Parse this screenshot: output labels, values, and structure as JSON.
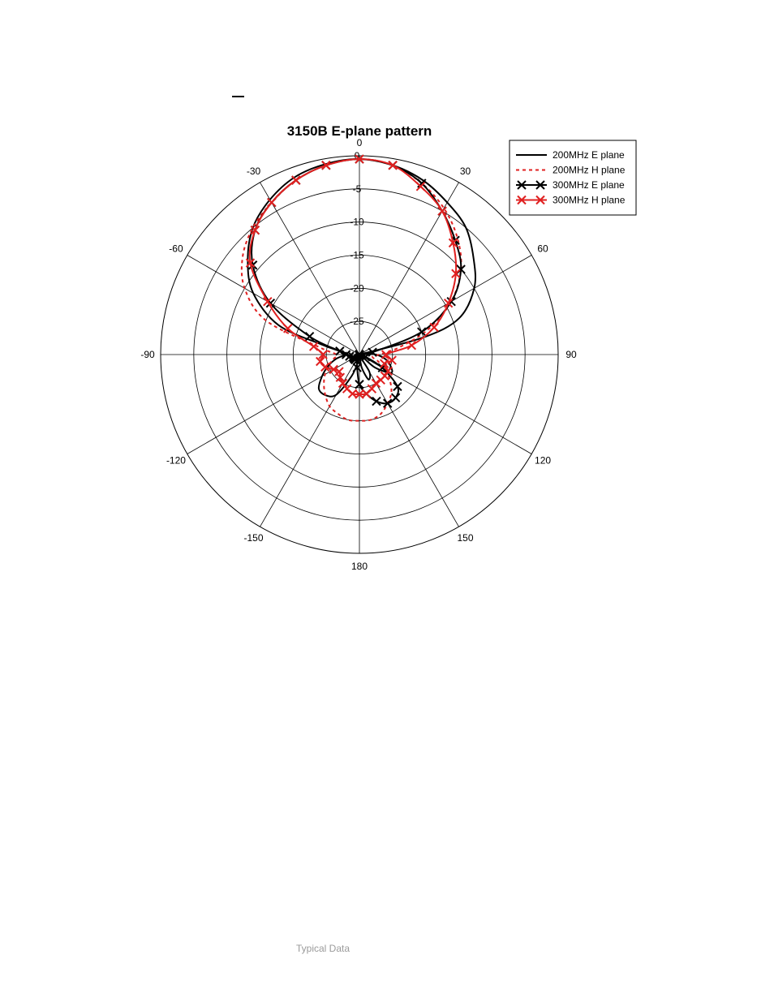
{
  "chart_data": {
    "type": "polar-line",
    "title": "3150B E-plane pattern",
    "angle_unit": "degrees",
    "radial_unit": "dB",
    "rlim": [
      -30,
      0
    ],
    "radial_ticks": [
      0,
      -5,
      -10,
      -15,
      -20,
      -25
    ],
    "radial_tick_labels": [
      "0",
      "-5",
      "-10",
      "-15",
      "-20",
      "-25"
    ],
    "angle_ticks": [
      0,
      30,
      60,
      90,
      120,
      150,
      180,
      -150,
      -120,
      -90,
      -60,
      -30
    ],
    "angle_tick_labels": [
      "0",
      "30",
      "60",
      "90",
      "120",
      "150",
      "180",
      "-150",
      "-120",
      "-90",
      "-60",
      "-30"
    ],
    "grid": true,
    "legend_position": "top-right",
    "series": [
      {
        "name": "200MHz E plane",
        "color": "#000000",
        "style": "solid",
        "marker": "none",
        "angles": [
          0,
          10,
          20,
          30,
          40,
          50,
          60,
          70,
          75,
          80,
          85,
          90,
          100,
          110,
          120,
          130,
          140,
          150,
          160,
          170,
          180,
          -170,
          -160,
          -150,
          -140,
          -130,
          -120,
          -110,
          -100,
          -90,
          -85,
          -80,
          -75,
          -70,
          -60,
          -50,
          -40,
          -30,
          -20,
          -10
        ],
        "values": [
          -0.5,
          -1,
          -2,
          -3.5,
          -5,
          -7.5,
          -10,
          -14,
          -20,
          -30,
          -29,
          -27.5,
          -26,
          -25,
          -24.5,
          -27,
          -30,
          -27,
          -26,
          -28,
          -30,
          -29,
          -26.5,
          -23,
          -22,
          -22,
          -23.5,
          -25,
          -26.5,
          -28,
          -28,
          -27,
          -24,
          -17,
          -11.5,
          -8,
          -5,
          -3,
          -1.5,
          -0.8
        ]
      },
      {
        "name": "200MHz H plane",
        "color": "#e02020",
        "style": "dashed",
        "marker": "none",
        "angles": [
          0,
          10,
          20,
          30,
          40,
          50,
          60,
          70,
          80,
          90,
          100,
          110,
          120,
          130,
          140,
          150,
          160,
          170,
          180,
          -170,
          -160,
          -150,
          -140,
          -130,
          -120,
          -110,
          -100,
          -90,
          -80,
          -70,
          -60,
          -50,
          -40,
          -30,
          -20,
          -10
        ],
        "values": [
          -0.5,
          -1,
          -2.5,
          -4.5,
          -7,
          -10,
          -14,
          -19,
          -24,
          -27,
          -28,
          -27,
          -25.5,
          -24,
          -22.5,
          -21.5,
          -20.5,
          -20,
          -20,
          -20,
          -20.5,
          -21,
          -22,
          -23,
          -24,
          -25,
          -26,
          -26.5,
          -24,
          -15,
          -10,
          -7,
          -5,
          -3.5,
          -2,
          -1
        ]
      },
      {
        "name": "300MHz E plane",
        "color": "#000000",
        "style": "solid",
        "marker": "x",
        "angles": [
          0,
          10,
          20,
          30,
          40,
          50,
          60,
          70,
          80,
          90,
          100,
          110,
          120,
          130,
          140,
          150,
          160,
          170,
          180,
          -170,
          -160,
          -150,
          -140,
          -130,
          -120,
          -110,
          -100,
          -90,
          -80,
          -70,
          -60,
          -50,
          -40,
          -30,
          -20,
          -10
        ],
        "values": [
          -0.5,
          -1,
          -2.5,
          -5,
          -7.5,
          -10,
          -14,
          -20,
          -28,
          -30,
          -30,
          -29,
          -26,
          -22.5,
          -21.5,
          -21.5,
          -22.5,
          -24,
          -25.5,
          -28,
          -29,
          -30,
          -29,
          -29,
          -29,
          -29,
          -28.5,
          -28,
          -27,
          -22,
          -14.5,
          -9,
          -5.5,
          -3.5,
          -2,
          -1
        ]
      },
      {
        "name": "300MHz H plane",
        "color": "#e02020",
        "style": "solid",
        "marker": "x",
        "angles": [
          0,
          10,
          20,
          30,
          40,
          50,
          60,
          70,
          80,
          90,
          100,
          110,
          120,
          130,
          140,
          150,
          160,
          170,
          180,
          -170,
          -160,
          -150,
          -140,
          -130,
          -120,
          -110,
          -100,
          -90,
          -80,
          -70,
          -60,
          -50,
          -40,
          -30,
          -20,
          -10
        ],
        "values": [
          -0.5,
          -1,
          -3,
          -5,
          -8,
          -11,
          -14.5,
          -18,
          -22,
          -26,
          -25,
          -26,
          -25,
          -25,
          -25,
          -25,
          -24.5,
          -24,
          -24,
          -24,
          -24.5,
          -25,
          -25.5,
          -26,
          -25.5,
          -24.5,
          -24,
          -24.5,
          -23,
          -18.5,
          -14,
          -8.5,
          -5.5,
          -3.5,
          -2,
          -1
        ]
      }
    ]
  },
  "footer": {
    "caption": "Typical Data"
  }
}
